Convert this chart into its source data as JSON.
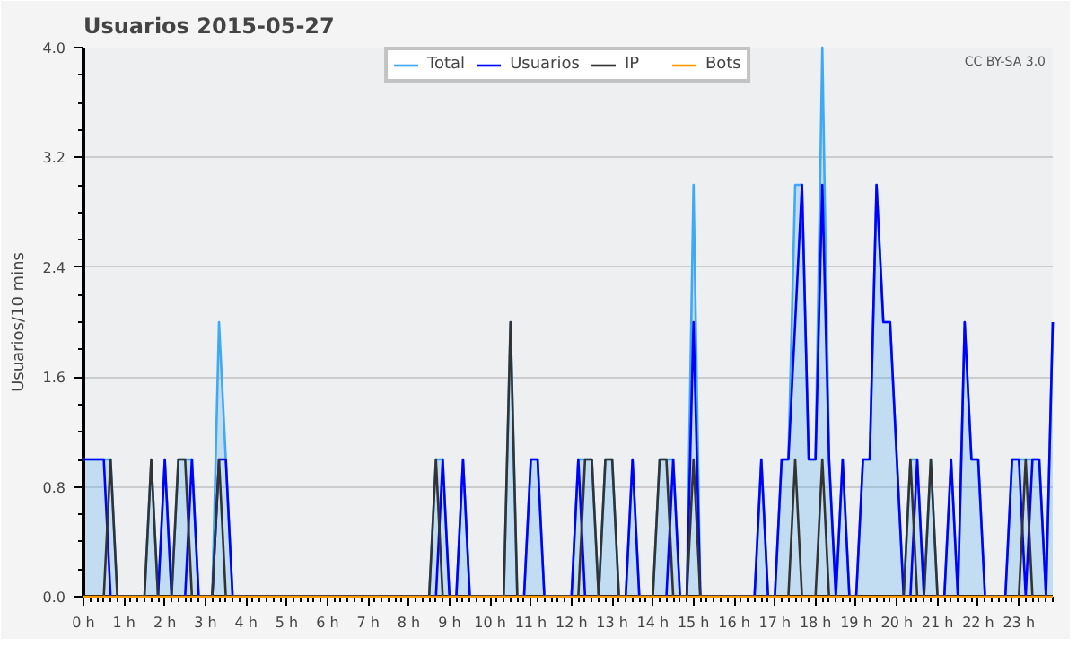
{
  "chart_data": {
    "type": "line",
    "title": "Usuarios  2015-05-27",
    "ylabel": "Usuarios/10 mins",
    "x": [
      0,
      0.167,
      0.333,
      0.5,
      0.667,
      0.833,
      1,
      1.167,
      1.333,
      1.5,
      1.667,
      1.833,
      2,
      2.167,
      2.333,
      2.5,
      2.667,
      2.833,
      3,
      3.167,
      3.333,
      3.5,
      3.667,
      3.833,
      4,
      4.167,
      4.333,
      4.5,
      4.667,
      4.833,
      5,
      5.167,
      5.333,
      5.5,
      5.667,
      5.833,
      6,
      6.167,
      6.333,
      6.5,
      6.667,
      6.833,
      7,
      7.167,
      7.333,
      7.5,
      7.667,
      7.833,
      8,
      8.167,
      8.333,
      8.5,
      8.667,
      8.833,
      9,
      9.167,
      9.333,
      9.5,
      9.667,
      9.833,
      10,
      10.167,
      10.333,
      10.5,
      10.667,
      10.833,
      11,
      11.167,
      11.333,
      11.5,
      11.667,
      11.833,
      12,
      12.167,
      12.333,
      12.5,
      12.667,
      12.833,
      13,
      13.167,
      13.333,
      13.5,
      13.667,
      13.833,
      14,
      14.167,
      14.333,
      14.5,
      14.667,
      14.833,
      15,
      15.167,
      15.333,
      15.5,
      15.667,
      15.833,
      16,
      16.167,
      16.333,
      16.5,
      16.667,
      16.833,
      17,
      17.167,
      17.333,
      17.5,
      17.667,
      17.833,
      18,
      18.167,
      18.333,
      18.5,
      18.667,
      18.833,
      19,
      19.167,
      19.333,
      19.5,
      19.667,
      19.833,
      20,
      20.167,
      20.333,
      20.5,
      20.667,
      20.833,
      21,
      21.167,
      21.333,
      21.5,
      21.667,
      21.833,
      22,
      22.167,
      22.333,
      22.5,
      22.667,
      22.833,
      23,
      23.167,
      23.333,
      23.5,
      23.667,
      23.833
    ],
    "series": [
      {
        "name": "Total",
        "type": "area",
        "color": "#3fa9f5",
        "values": [
          1,
          1,
          1,
          1,
          1,
          0,
          0,
          0,
          0,
          0,
          1,
          0,
          1,
          0,
          1,
          1,
          1,
          0,
          0,
          0,
          2,
          1,
          0,
          0,
          0,
          0,
          0,
          0,
          0,
          0,
          0,
          0,
          0,
          0,
          0,
          0,
          0,
          0,
          0,
          0,
          0,
          0,
          0,
          0,
          0,
          0,
          0,
          0,
          0,
          0,
          0,
          0,
          1,
          1,
          0,
          0,
          1,
          0,
          0,
          0,
          0,
          0,
          0,
          2,
          0,
          0,
          1,
          1,
          0,
          0,
          0,
          0,
          0,
          1,
          1,
          1,
          0,
          1,
          1,
          0,
          0,
          1,
          0,
          0,
          0,
          1,
          1,
          1,
          0,
          0,
          3,
          0,
          0,
          0,
          0,
          0,
          0,
          0,
          0,
          0,
          1,
          0,
          0,
          1,
          1,
          3,
          3,
          1,
          1,
          4,
          1,
          0,
          1,
          0,
          0,
          1,
          1,
          3,
          2,
          2,
          1,
          0,
          1,
          1,
          0,
          1,
          0,
          0,
          1,
          0,
          2,
          1,
          1,
          0,
          0,
          0,
          0,
          1,
          1,
          1,
          1,
          1,
          0,
          2
        ]
      },
      {
        "name": "Usuarios",
        "color": "#0000ff",
        "values": [
          1,
          1,
          1,
          1,
          0,
          0,
          0,
          0,
          0,
          0,
          0,
          0,
          1,
          0,
          0,
          0,
          1,
          0,
          0,
          0,
          1,
          1,
          0,
          0,
          0,
          0,
          0,
          0,
          0,
          0,
          0,
          0,
          0,
          0,
          0,
          0,
          0,
          0,
          0,
          0,
          0,
          0,
          0,
          0,
          0,
          0,
          0,
          0,
          0,
          0,
          0,
          0,
          0,
          1,
          0,
          0,
          1,
          0,
          0,
          0,
          0,
          0,
          0,
          0,
          0,
          0,
          1,
          1,
          0,
          0,
          0,
          0,
          0,
          1,
          0,
          0,
          0,
          0,
          0,
          0,
          0,
          1,
          0,
          0,
          0,
          0,
          0,
          1,
          0,
          0,
          2,
          0,
          0,
          0,
          0,
          0,
          0,
          0,
          0,
          0,
          1,
          0,
          0,
          1,
          1,
          2,
          3,
          1,
          1,
          3,
          1,
          0,
          1,
          0,
          0,
          1,
          1,
          3,
          2,
          2,
          1,
          0,
          0,
          1,
          0,
          0,
          0,
          0,
          1,
          0,
          2,
          1,
          1,
          0,
          0,
          0,
          0,
          1,
          1,
          0,
          1,
          1,
          0,
          2
        ]
      },
      {
        "name": "IP",
        "color": "#333333",
        "values": [
          0,
          0,
          0,
          0,
          1,
          0,
          0,
          0,
          0,
          0,
          1,
          0,
          0,
          0,
          1,
          1,
          0,
          0,
          0,
          0,
          1,
          0,
          0,
          0,
          0,
          0,
          0,
          0,
          0,
          0,
          0,
          0,
          0,
          0,
          0,
          0,
          0,
          0,
          0,
          0,
          0,
          0,
          0,
          0,
          0,
          0,
          0,
          0,
          0,
          0,
          0,
          0,
          1,
          0,
          0,
          0,
          0,
          0,
          0,
          0,
          0,
          0,
          0,
          2,
          0,
          0,
          0,
          0,
          0,
          0,
          0,
          0,
          0,
          0,
          1,
          1,
          0,
          1,
          1,
          0,
          0,
          0,
          0,
          0,
          0,
          1,
          1,
          0,
          0,
          0,
          1,
          0,
          0,
          0,
          0,
          0,
          0,
          0,
          0,
          0,
          0,
          0,
          0,
          0,
          0,
          1,
          0,
          0,
          0,
          1,
          0,
          0,
          0,
          0,
          0,
          0,
          0,
          0,
          0,
          0,
          0,
          0,
          1,
          0,
          0,
          1,
          0,
          0,
          0,
          0,
          0,
          0,
          0,
          0,
          0,
          0,
          0,
          0,
          0,
          1,
          0,
          0,
          0,
          0
        ]
      },
      {
        "name": "Bots",
        "color": "#ff9900",
        "values": [
          0,
          0,
          0,
          0,
          0,
          0,
          0,
          0,
          0,
          0,
          0,
          0,
          0,
          0,
          0,
          0,
          0,
          0,
          0,
          0,
          0,
          0,
          0,
          0,
          0,
          0,
          0,
          0,
          0,
          0,
          0,
          0,
          0,
          0,
          0,
          0,
          0,
          0,
          0,
          0,
          0,
          0,
          0,
          0,
          0,
          0,
          0,
          0,
          0,
          0,
          0,
          0,
          0,
          0,
          0,
          0,
          0,
          0,
          0,
          0,
          0,
          0,
          0,
          0,
          0,
          0,
          0,
          0,
          0,
          0,
          0,
          0,
          0,
          0,
          0,
          0,
          0,
          0,
          0,
          0,
          0,
          0,
          0,
          0,
          0,
          0,
          0,
          0,
          0,
          0,
          0,
          0,
          0,
          0,
          0,
          0,
          0,
          0,
          0,
          0,
          0,
          0,
          0,
          0,
          0,
          0,
          0,
          0,
          0,
          0,
          0,
          0,
          0,
          0,
          0,
          0,
          0,
          0,
          0,
          0,
          0,
          0,
          0,
          0,
          0,
          0,
          0,
          0,
          0,
          0,
          0,
          0,
          0,
          0,
          0,
          0,
          0,
          0,
          0,
          0,
          0,
          0,
          0,
          0
        ]
      }
    ],
    "xlim": [
      0,
      23.833
    ],
    "xticks": [
      {
        "value": 0,
        "label": "0 h"
      },
      {
        "value": 1,
        "label": "1 h"
      },
      {
        "value": 2,
        "label": "2 h"
      },
      {
        "value": 3,
        "label": "3 h"
      },
      {
        "value": 4,
        "label": "4 h"
      },
      {
        "value": 5,
        "label": "5 h"
      },
      {
        "value": 6,
        "label": "6 h"
      },
      {
        "value": 7,
        "label": "7 h"
      },
      {
        "value": 8,
        "label": "8 h"
      },
      {
        "value": 9,
        "label": "9 h"
      },
      {
        "value": 10,
        "label": "10 h"
      },
      {
        "value": 11,
        "label": "11 h"
      },
      {
        "value": 12,
        "label": "12 h"
      },
      {
        "value": 13,
        "label": "13 h"
      },
      {
        "value": 14,
        "label": "14 h"
      },
      {
        "value": 15,
        "label": "15 h"
      },
      {
        "value": 16,
        "label": "16 h"
      },
      {
        "value": 17,
        "label": "17 h"
      },
      {
        "value": 18,
        "label": "18 h"
      },
      {
        "value": 19,
        "label": "19 h"
      },
      {
        "value": 20,
        "label": "20 h"
      },
      {
        "value": 21,
        "label": "21 h"
      },
      {
        "value": 22,
        "label": "22 h"
      },
      {
        "value": 23,
        "label": "23 h"
      }
    ],
    "ylim": [
      0,
      4.0
    ],
    "yticks": [
      {
        "value": 0,
        "label": "0.0"
      },
      {
        "value": 0.8,
        "label": "0.8"
      },
      {
        "value": 1.6,
        "label": "1.6"
      },
      {
        "value": 2.4,
        "label": "2.4"
      },
      {
        "value": 3.2,
        "label": "3.2"
      },
      {
        "value": 4.0,
        "label": "4.0"
      }
    ],
    "grid": "y",
    "legend": "top",
    "marker": "none",
    "annotations": [
      "CC BY-SA 3.0"
    ]
  }
}
